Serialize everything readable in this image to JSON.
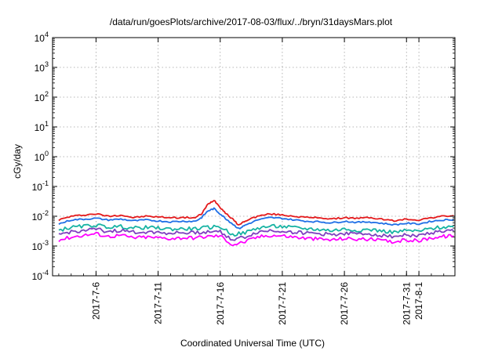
{
  "chart_data": {
    "type": "line",
    "title": "/data/run/goesPlots/archive/2017-08-03/flux/../bryn/31daysMars.plot",
    "xlabel": "Coordinated Universal Time (UTC)",
    "ylabel": "cGy/day",
    "y_scale": "log",
    "ylim_exponents": [
      -4,
      4
    ],
    "y_ticks": [
      {
        "base": "10",
        "exp": "4"
      },
      {
        "base": "10",
        "exp": "3"
      },
      {
        "base": "10",
        "exp": "2"
      },
      {
        "base": "10",
        "exp": "1"
      },
      {
        "base": "10",
        "exp": "0"
      },
      {
        "base": "10",
        "exp": "-1"
      },
      {
        "base": "10",
        "exp": "-2"
      },
      {
        "base": "10",
        "exp": "-3"
      },
      {
        "base": "10",
        "exp": "-4"
      }
    ],
    "x_range_days": [
      2.5,
      34.9
    ],
    "x_ticks": [
      {
        "label": "2017-7-6",
        "day": 6
      },
      {
        "label": "2017-7-11",
        "day": 11
      },
      {
        "label": "2017-7-16",
        "day": 16
      },
      {
        "label": "2017-7-21",
        "day": 21
      },
      {
        "label": "2017-7-26",
        "day": 26
      },
      {
        "label": "2017-7-31",
        "day": 31
      },
      {
        "label": "2017-8-1",
        "day": 32
      }
    ],
    "grid": true,
    "series": [
      {
        "color": "#e41a1c",
        "x": [
          3,
          4,
          5,
          6,
          7,
          8,
          9,
          10,
          11,
          12,
          13,
          14,
          14.5,
          15,
          15.5,
          16,
          16.5,
          17,
          17.5,
          18,
          19,
          20,
          21,
          22,
          23,
          24,
          25,
          26,
          27,
          28,
          29,
          30,
          31,
          32,
          33,
          34,
          34.8
        ],
        "y": [
          0.0075,
          0.01,
          0.011,
          0.012,
          0.01,
          0.011,
          0.009,
          0.01,
          0.0095,
          0.009,
          0.009,
          0.009,
          0.012,
          0.025,
          0.035,
          0.02,
          0.012,
          0.008,
          0.005,
          0.007,
          0.01,
          0.012,
          0.011,
          0.01,
          0.009,
          0.009,
          0.008,
          0.009,
          0.0085,
          0.009,
          0.008,
          0.007,
          0.008,
          0.0075,
          0.009,
          0.01,
          0.0105
        ]
      },
      {
        "color": "#1f6fe6",
        "x": [
          3,
          4,
          5,
          6,
          7,
          8,
          9,
          10,
          11,
          12,
          13,
          14,
          14.5,
          15,
          15.5,
          16,
          16.5,
          17,
          17.5,
          18,
          19,
          20,
          21,
          22,
          23,
          24,
          25,
          26,
          27,
          28,
          29,
          30,
          31,
          32,
          33,
          34,
          34.8
        ],
        "y": [
          0.0055,
          0.0075,
          0.008,
          0.0085,
          0.0075,
          0.008,
          0.007,
          0.0075,
          0.007,
          0.0065,
          0.0068,
          0.0068,
          0.009,
          0.015,
          0.018,
          0.012,
          0.008,
          0.0055,
          0.0038,
          0.005,
          0.0075,
          0.009,
          0.0085,
          0.0075,
          0.0068,
          0.0065,
          0.006,
          0.0068,
          0.0062,
          0.0065,
          0.0058,
          0.0052,
          0.0058,
          0.0055,
          0.0068,
          0.0075,
          0.0078
        ]
      },
      {
        "color": "#17b3a3",
        "x": [
          3,
          4,
          5,
          6,
          7,
          8,
          9,
          10,
          11,
          12,
          13,
          14,
          15,
          16,
          17,
          18,
          19,
          20,
          21,
          22,
          23,
          24,
          25,
          26,
          27,
          28,
          29,
          30,
          31,
          32,
          33,
          34,
          34.8
        ],
        "y": [
          0.0034,
          0.0042,
          0.0046,
          0.005,
          0.0043,
          0.0045,
          0.004,
          0.0042,
          0.004,
          0.0037,
          0.0038,
          0.0038,
          0.0042,
          0.0045,
          0.0024,
          0.0028,
          0.004,
          0.0046,
          0.0045,
          0.0041,
          0.0038,
          0.0036,
          0.0033,
          0.0037,
          0.0034,
          0.0036,
          0.0032,
          0.0029,
          0.0033,
          0.0031,
          0.0039,
          0.0043,
          0.0045
        ]
      },
      {
        "color": "#7f3fbf",
        "x": [
          3,
          4,
          5,
          6,
          7,
          8,
          9,
          10,
          11,
          12,
          13,
          14,
          15,
          16,
          17,
          18,
          19,
          20,
          21,
          22,
          23,
          24,
          25,
          26,
          27,
          28,
          29,
          30,
          31,
          32,
          33,
          34,
          34.8
        ],
        "y": [
          0.0024,
          0.003,
          0.0033,
          0.0036,
          0.0031,
          0.0033,
          0.0029,
          0.003,
          0.0029,
          0.0027,
          0.0028,
          0.0028,
          0.003,
          0.0031,
          0.0016,
          0.002,
          0.0029,
          0.0033,
          0.0032,
          0.0029,
          0.0027,
          0.0026,
          0.0024,
          0.0027,
          0.0025,
          0.0026,
          0.0023,
          0.0021,
          0.0024,
          0.0022,
          0.0028,
          0.0031,
          0.0032
        ]
      },
      {
        "color": "#ff00ff",
        "x": [
          3,
          4,
          5,
          6,
          7,
          8,
          9,
          10,
          11,
          12,
          13,
          14,
          15,
          16,
          17,
          18,
          19,
          20,
          21,
          22,
          23,
          24,
          25,
          26,
          27,
          28,
          29,
          30,
          31,
          32,
          33,
          34,
          34.8
        ],
        "y": [
          0.0016,
          0.002,
          0.0023,
          0.0026,
          0.0021,
          0.0023,
          0.0019,
          0.002,
          0.0019,
          0.0018,
          0.0019,
          0.0019,
          0.0021,
          0.0022,
          0.0011,
          0.0014,
          0.002,
          0.0023,
          0.0022,
          0.002,
          0.0018,
          0.0017,
          0.0016,
          0.0018,
          0.0017,
          0.0017,
          0.0015,
          0.0014,
          0.0016,
          0.0015,
          0.0019,
          0.0021,
          0.0022
        ]
      }
    ]
  }
}
